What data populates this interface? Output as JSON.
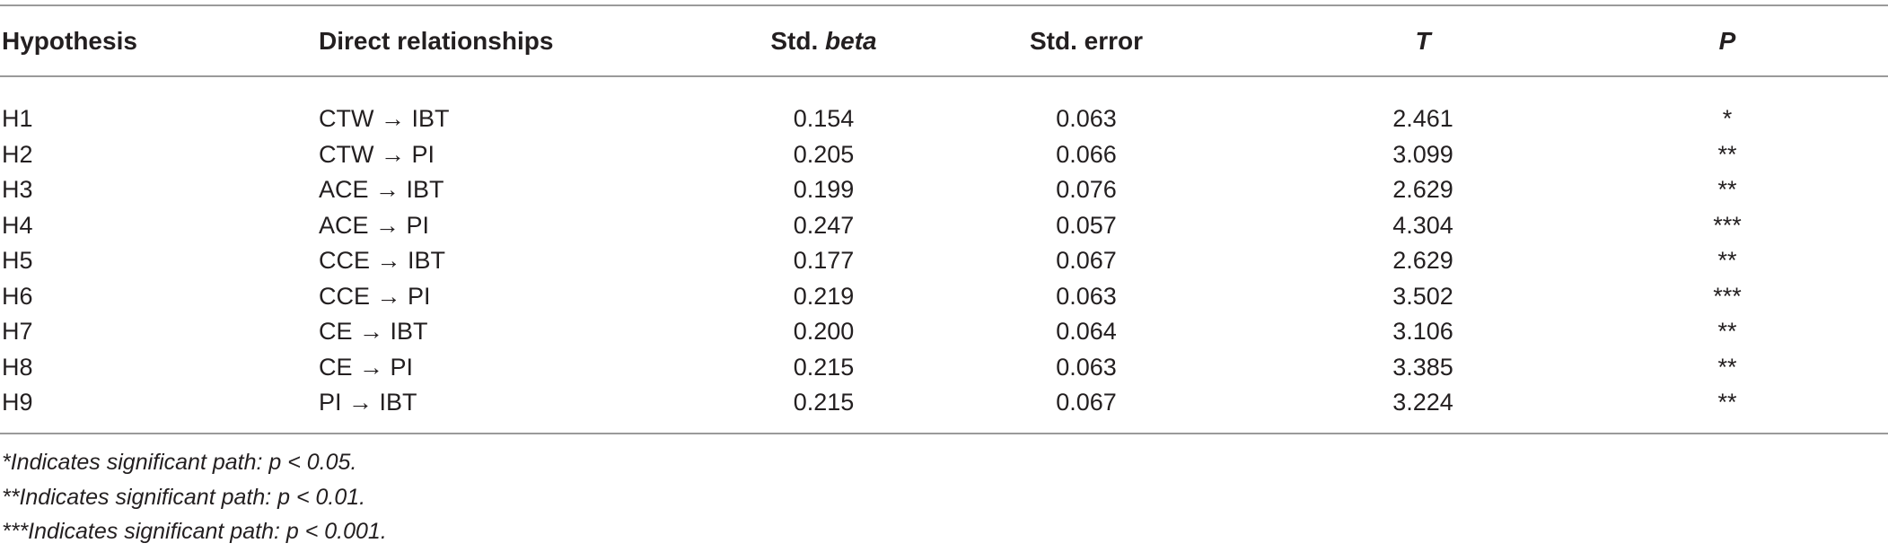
{
  "table": {
    "headers": {
      "hypothesis": "Hypothesis",
      "relationships": "Direct relationships",
      "std_beta_prefix": "Std.",
      "std_beta_italic": "beta",
      "std_error": "Std. error",
      "t": "T",
      "p": "P"
    },
    "rows": [
      {
        "hypothesis": "H1",
        "relationship": "CTW → IBT",
        "std_beta": "0.154",
        "std_error": "0.063",
        "t": "2.461",
        "p": "*"
      },
      {
        "hypothesis": "H2",
        "relationship": "CTW → PI",
        "std_beta": "0.205",
        "std_error": "0.066",
        "t": "3.099",
        "p": "**"
      },
      {
        "hypothesis": "H3",
        "relationship": "ACE → IBT",
        "std_beta": "0.199",
        "std_error": "0.076",
        "t": "2.629",
        "p": "**"
      },
      {
        "hypothesis": "H4",
        "relationship": "ACE → PI",
        "std_beta": "0.247",
        "std_error": "0.057",
        "t": "4.304",
        "p": "***"
      },
      {
        "hypothesis": "H5",
        "relationship": "CCE → IBT",
        "std_beta": "0.177",
        "std_error": "0.067",
        "t": "2.629",
        "p": "**"
      },
      {
        "hypothesis": "H6",
        "relationship": "CCE → PI",
        "std_beta": "0.219",
        "std_error": "0.063",
        "t": "3.502",
        "p": "***"
      },
      {
        "hypothesis": "H7",
        "relationship": "CE → IBT",
        "std_beta": "0.200",
        "std_error": "0.064",
        "t": "3.106",
        "p": "**"
      },
      {
        "hypothesis": "H8",
        "relationship": "CE → PI",
        "std_beta": "0.215",
        "std_error": "0.063",
        "t": "3.385",
        "p": "**"
      },
      {
        "hypothesis": "H9",
        "relationship": "PI → IBT",
        "std_beta": "0.215",
        "std_error": "0.067",
        "t": "3.224",
        "p": "**"
      }
    ]
  },
  "notes": [
    "*Indicates significant path: p < 0.05.",
    "**Indicates significant path: p < 0.01.",
    "***Indicates significant path: p < 0.001."
  ]
}
